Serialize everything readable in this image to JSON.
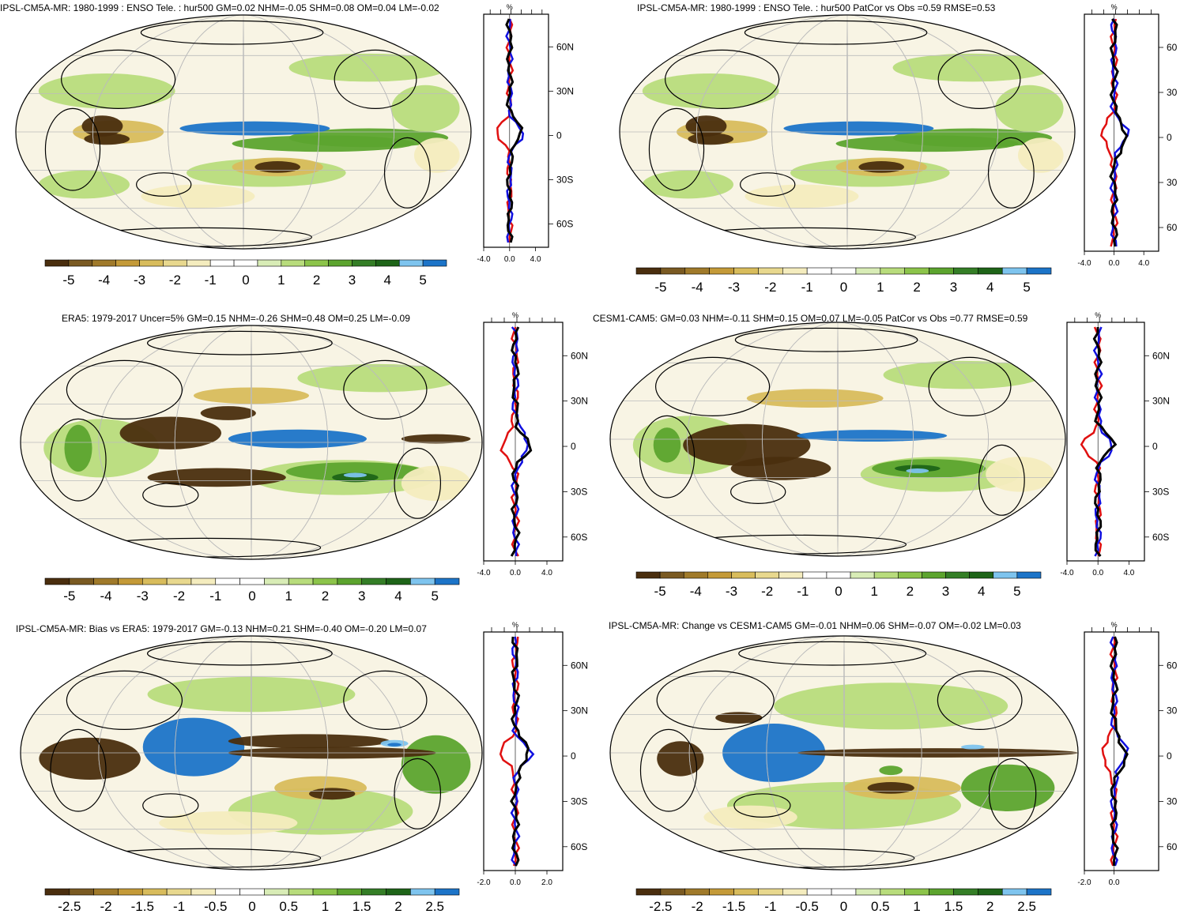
{
  "colorbar_colors": [
    "#4a2e0e",
    "#7a5a22",
    "#a07a2a",
    "#c49a38",
    "#d8bc5c",
    "#e8d88e",
    "#f4ecbe",
    "#ffffff",
    "#ffffff",
    "#d8ecb6",
    "#b8dc7c",
    "#8cc44a",
    "#5ca42e",
    "#347e26",
    "#1e6418",
    "#7ec4ee",
    "#1c74c8"
  ],
  "profile_colors": {
    "model": "#e01010",
    "obs": "#1010e0",
    "mean": "#000000"
  },
  "panels": [
    {
      "id": "p1",
      "title": "IPSL-CM5A-MR: 1980-1999 : ENSO Tele. : hur500 GM=0.02 NHM=-0.05 SHM=0.08 OM=0.04 LM=-0.02",
      "colorbar_labels": [
        "-5",
        "-4",
        "-3",
        "-2",
        "-1",
        "0",
        "1",
        "2",
        "3",
        "4",
        "5"
      ],
      "profile_unit": "%",
      "profile_xticks": [
        "-4.0",
        "0.0",
        "4.0"
      ],
      "profile_yticks": [
        "60N",
        "30N",
        "0",
        "30S",
        "60S"
      ]
    },
    {
      "id": "p2",
      "title": "IPSL-CM5A-MR: 1980-1999 : ENSO Tele. : hur500 PatCor vs Obs =0.59 RMSE=0.53",
      "colorbar_labels": [
        "-5",
        "-4",
        "-3",
        "-2",
        "-1",
        "0",
        "1",
        "2",
        "3",
        "4",
        "5"
      ],
      "profile_unit": "%",
      "profile_xticks": [
        "-4.0",
        "0.0",
        "4.0"
      ],
      "profile_yticks": [
        "60",
        "30",
        "0",
        "30",
        "60"
      ]
    },
    {
      "id": "p3",
      "title": "ERA5: 1979-2017 Uncer=5% GM=0.15 NHM=-0.26 SHM=0.48 OM=0.25 LM=-0.09",
      "colorbar_labels": [
        "-5",
        "-4",
        "-3",
        "-2",
        "-1",
        "0",
        "1",
        "2",
        "3",
        "4",
        "5"
      ],
      "profile_unit": "%",
      "profile_xticks": [
        "-4.0",
        "0.0",
        "4.0"
      ],
      "profile_yticks": [
        "60N",
        "30N",
        "0",
        "30S",
        "60S"
      ]
    },
    {
      "id": "p4",
      "title": "CESM1-CAM5: GM=0.03 NHM=-0.11 SHM=0.15 OM=0.07 LM=-0.05 PatCor vs Obs =0.77 RMSE=0.59",
      "colorbar_labels": [
        "-5",
        "-4",
        "-3",
        "-2",
        "-1",
        "0",
        "1",
        "2",
        "3",
        "4",
        "5"
      ],
      "profile_unit": "%",
      "profile_xticks": [
        "-4.0",
        "0.0",
        "4.0"
      ],
      "profile_yticks": [
        "60N",
        "30N",
        "0",
        "30S",
        "60S"
      ]
    },
    {
      "id": "p5",
      "title": "IPSL-CM5A-MR: Bias vs ERA5: 1979-2017 GM=-0.13 NHM=0.21 SHM=-0.40 OM=-0.20 LM=0.07",
      "colorbar_labels": [
        "-2.5",
        "-2",
        "-1.5",
        "-1",
        "-0.5",
        "0",
        "0.5",
        "1",
        "1.5",
        "2",
        "2.5"
      ],
      "profile_unit": "%",
      "profile_xticks": [
        "-2.0",
        "0.0",
        "2.0"
      ],
      "profile_yticks": [
        "60N",
        "30N",
        "0",
        "30S",
        "60S"
      ]
    },
    {
      "id": "p6",
      "title": "IPSL-CM5A-MR: Change vs CESM1-CAM5 GM=-0.01 NHM=0.06 SHM=-0.07 OM=-0.02 LM=0.03",
      "colorbar_labels": [
        "-2.5",
        "-2",
        "-1.5",
        "-1",
        "-0.5",
        "0",
        "0.5",
        "1",
        "1.5",
        "2",
        "2.5"
      ],
      "profile_unit": "%",
      "profile_xticks": [
        "-2.0",
        "0.0"
      ],
      "profile_yticks": [
        "60",
        "30",
        "0",
        "30",
        "60"
      ]
    }
  ],
  "chart_data": [
    {
      "type": "heatmap",
      "title": "IPSL-CM5A-MR: 1980-1999 : ENSO Tele. : hur500 GM=0.02 NHM=-0.05 SHM=0.08 OM=0.04 LM=-0.02",
      "colorbar_range": [
        -5,
        5
      ],
      "colorbar_ticks": [
        -5,
        -4,
        -3,
        -2,
        -1,
        0,
        1,
        2,
        3,
        4,
        5
      ],
      "profile": {
        "unit": "%",
        "xlim": [
          -4,
          4
        ],
        "xticks": [
          -4,
          0,
          4
        ],
        "lat_ticks": [
          60,
          30,
          0,
          -30,
          -60
        ]
      }
    },
    {
      "type": "heatmap",
      "title": "IPSL-CM5A-MR: 1980-1999 : ENSO Tele. : hur500 PatCor vs Obs =0.59 RMSE=0.53",
      "colorbar_range": [
        -5,
        5
      ],
      "colorbar_ticks": [
        -5,
        -4,
        -3,
        -2,
        -1,
        0,
        1,
        2,
        3,
        4,
        5
      ],
      "profile": {
        "unit": "%",
        "xlim": [
          -4,
          4
        ],
        "xticks": [
          -4,
          0,
          4
        ],
        "lat_ticks": [
          60,
          30,
          0,
          -30,
          -60
        ]
      }
    },
    {
      "type": "heatmap",
      "title": "ERA5: 1979-2017 Uncer=5% GM=0.15 NHM=-0.26 SHM=0.48 OM=0.25 LM=-0.09",
      "colorbar_range": [
        -5,
        5
      ],
      "colorbar_ticks": [
        -5,
        -4,
        -3,
        -2,
        -1,
        0,
        1,
        2,
        3,
        4,
        5
      ],
      "profile": {
        "unit": "%",
        "xlim": [
          -4,
          4
        ],
        "xticks": [
          -4,
          0,
          4
        ],
        "lat_ticks": [
          60,
          30,
          0,
          -30,
          -60
        ]
      }
    },
    {
      "type": "heatmap",
      "title": "CESM1-CAM5: GM=0.03 NHM=-0.11 SHM=0.15 OM=0.07 LM=-0.05 PatCor vs Obs =0.77 RMSE=0.59",
      "colorbar_range": [
        -5,
        5
      ],
      "colorbar_ticks": [
        -5,
        -4,
        -3,
        -2,
        -1,
        0,
        1,
        2,
        3,
        4,
        5
      ],
      "profile": {
        "unit": "%",
        "xlim": [
          -4,
          4
        ],
        "xticks": [
          -4,
          0,
          4
        ],
        "lat_ticks": [
          60,
          30,
          0,
          -30,
          -60
        ]
      }
    },
    {
      "type": "heatmap",
      "title": "IPSL-CM5A-MR: Bias vs ERA5: 1979-2017 GM=-0.13 NHM=0.21 SHM=-0.40 OM=-0.20 LM=0.07",
      "colorbar_range": [
        -2.5,
        2.5
      ],
      "colorbar_ticks": [
        -2.5,
        -2,
        -1.5,
        -1,
        -0.5,
        0,
        0.5,
        1,
        1.5,
        2,
        2.5
      ],
      "profile": {
        "unit": "%",
        "xlim": [
          -2,
          2
        ],
        "xticks": [
          -2,
          0,
          2
        ],
        "lat_ticks": [
          60,
          30,
          0,
          -30,
          -60
        ]
      }
    },
    {
      "type": "heatmap",
      "title": "IPSL-CM5A-MR: Change vs CESM1-CAM5 GM=-0.01 NHM=0.06 SHM=-0.07 OM=-0.02 LM=0.03",
      "colorbar_range": [
        -2.5,
        2.5
      ],
      "colorbar_ticks": [
        -2.5,
        -2,
        -1.5,
        -1,
        -0.5,
        0,
        0.5,
        1,
        1.5,
        2,
        2.5
      ],
      "profile": {
        "unit": "%",
        "xlim": [
          -2,
          2
        ],
        "xticks": [
          -2,
          0
        ],
        "lat_ticks": [
          60,
          30,
          0,
          -30,
          -60
        ]
      }
    }
  ]
}
